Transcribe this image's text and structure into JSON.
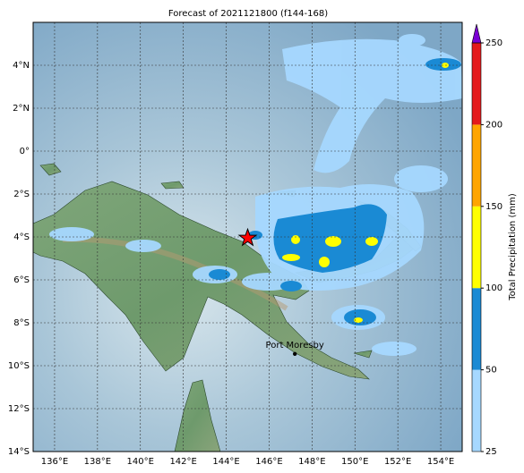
{
  "map": {
    "title": "Forecast of 2021121800 (f144-168)",
    "xlim": [
      135,
      155
    ],
    "ylim": [
      -14,
      6
    ],
    "xticks": [
      {
        "value": 136,
        "label": "136°E"
      },
      {
        "value": 138,
        "label": "138°E"
      },
      {
        "value": 140,
        "label": "140°E"
      },
      {
        "value": 142,
        "label": "142°E"
      },
      {
        "value": 144,
        "label": "144°E"
      },
      {
        "value": 146,
        "label": "146°E"
      },
      {
        "value": 148,
        "label": "148°E"
      },
      {
        "value": 150,
        "label": "150°E"
      },
      {
        "value": 152,
        "label": "152°E"
      },
      {
        "value": 154,
        "label": "154°E"
      }
    ],
    "yticks": [
      {
        "value": 4,
        "label": "4°N"
      },
      {
        "value": 2,
        "label": "2°N"
      },
      {
        "value": 0,
        "label": "0°"
      },
      {
        "value": -2,
        "label": "2°S"
      },
      {
        "value": -4,
        "label": "4°S"
      },
      {
        "value": -6,
        "label": "6°S"
      },
      {
        "value": -8,
        "label": "8°S"
      },
      {
        "value": -10,
        "label": "10°S"
      },
      {
        "value": -12,
        "label": "12°S"
      },
      {
        "value": -14,
        "label": "14°S"
      }
    ],
    "grid": true,
    "marker": {
      "lon": 145.0,
      "lat": -4.05,
      "color": "#ff0000"
    },
    "city": {
      "name": "Port Moresby",
      "lon": 147.2,
      "lat": -9.45
    },
    "colorbar": {
      "label": "Total Precipitation (mm)",
      "levels": [
        25,
        50,
        100,
        150,
        200,
        250
      ],
      "colors": [
        "#a6d8ff",
        "#1a8ad4",
        "#ffff00",
        "#ffa500",
        "#e41a1c"
      ],
      "extend_color": "#7b00d4"
    }
  }
}
